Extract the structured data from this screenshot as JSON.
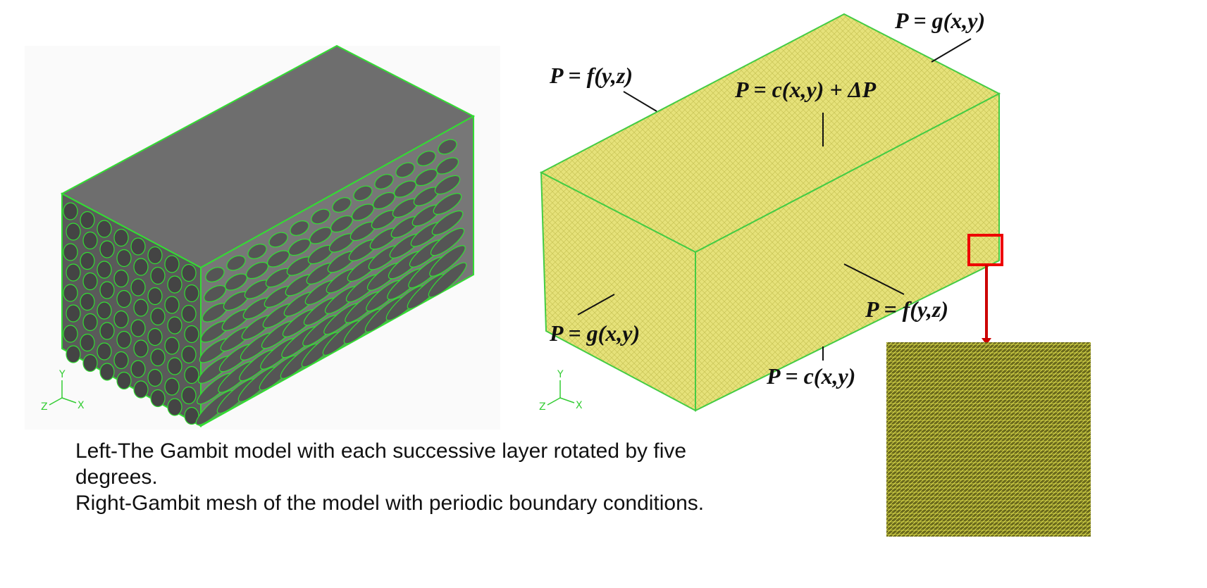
{
  "left_panel": {
    "axis_labels": {
      "y": "Y",
      "z": "Z",
      "x": "X"
    }
  },
  "right_panel": {
    "axis_labels": {
      "y": "Y",
      "z": "Z",
      "x": "X"
    },
    "labels": [
      "P = g(x,y)",
      "P = f(y,z)",
      "P = c(x,y) + ΔP",
      "P = g(x,y)",
      "P = f(y,z)",
      "P = c(x,y)"
    ]
  },
  "caption": {
    "lines": [
      "Left-The Gambit model with each successive layer rotated by five",
      "degrees.",
      "Right-Gambit mesh of the model with  periodic boundary conditions."
    ]
  }
}
